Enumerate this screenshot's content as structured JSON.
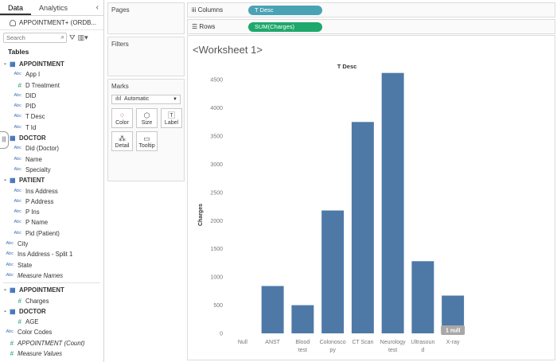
{
  "left_pane": {
    "tabs": [
      "Data",
      "Analytics"
    ],
    "collapse_glyph": "‹",
    "datasource": "APPOINTMENT+ (ORDB...",
    "search_placeholder": "Search",
    "tables_label": "Tables",
    "fields": [
      {
        "kind": "table",
        "label": "APPOINTMENT"
      },
      {
        "kind": "field",
        "type": "Abc",
        "label": "App I"
      },
      {
        "kind": "field",
        "type": "#",
        "label": "D Treatment"
      },
      {
        "kind": "field",
        "type": "Abc",
        "label": "DID"
      },
      {
        "kind": "field",
        "type": "Abc",
        "label": "PID"
      },
      {
        "kind": "field",
        "type": "Abc",
        "label": "T Desc"
      },
      {
        "kind": "field",
        "type": "Abc",
        "label": "T Id"
      },
      {
        "kind": "table",
        "label": "DOCTOR"
      },
      {
        "kind": "field",
        "type": "Abc",
        "label": "Did (Doctor)"
      },
      {
        "kind": "field",
        "type": "Abc",
        "label": "Name"
      },
      {
        "kind": "field",
        "type": "Abc",
        "label": "Specialty"
      },
      {
        "kind": "table",
        "label": "PATIENT"
      },
      {
        "kind": "field",
        "type": "Abc",
        "label": "Ins Address"
      },
      {
        "kind": "field",
        "type": "Abc",
        "label": "P Address"
      },
      {
        "kind": "field",
        "type": "Abc",
        "label": "P Ins"
      },
      {
        "kind": "field",
        "type": "Abc",
        "label": "P Name"
      },
      {
        "kind": "field",
        "type": "Abc",
        "label": "Pid (Patient)"
      },
      {
        "kind": "loose",
        "type": "Abc",
        "label": "City"
      },
      {
        "kind": "loose",
        "type": "Abc",
        "label": "Ins Address - Split 1"
      },
      {
        "kind": "loose",
        "type": "Abc",
        "label": "State"
      },
      {
        "kind": "loose-italic",
        "type": "Abc",
        "label": "Measure Names"
      },
      {
        "kind": "divider"
      },
      {
        "kind": "table",
        "label": "APPOINTMENT"
      },
      {
        "kind": "field",
        "type": "#",
        "label": "Charges"
      },
      {
        "kind": "table",
        "label": "DOCTOR"
      },
      {
        "kind": "field",
        "type": "#",
        "label": "AGE"
      },
      {
        "kind": "loose",
        "type": "Abc",
        "label": "Color Codes"
      },
      {
        "kind": "loose-italic",
        "type": "#",
        "label": "APPOINTMENT (Count)"
      },
      {
        "kind": "loose-italic",
        "type": "#",
        "label": "Measure Values"
      }
    ]
  },
  "cards": {
    "pages_title": "Pages",
    "filters_title": "Filters",
    "marks_title": "Marks",
    "marks_type": "Automatic",
    "mark_buttons": [
      {
        "label": "Color",
        "icon": "color-dots-icon",
        "glyph": "⁘"
      },
      {
        "label": "Size",
        "icon": "size-icon",
        "glyph": "⬡"
      },
      {
        "label": "Label",
        "icon": "label-icon",
        "glyph": "🅃"
      },
      {
        "label": "Detail",
        "icon": "detail-icon",
        "glyph": "⁂"
      },
      {
        "label": "Tooltip",
        "icon": "tooltip-icon",
        "glyph": "▭"
      }
    ]
  },
  "shelves": {
    "columns_label": "Columns",
    "columns_pill": "T Desc",
    "rows_label": "Rows",
    "rows_pill": "SUM(Charges)"
  },
  "worksheet": {
    "title": "<Worksheet 1>"
  },
  "colors": {
    "bar": "#4e79a7",
    "dim_pill": "#4aa3b5",
    "measure_pill": "#1ea86b",
    "null_badge": "#a8a8a8"
  },
  "chart_data": {
    "type": "bar",
    "title": "T Desc",
    "xlabel": "",
    "ylabel": "Charges",
    "ylim": [
      0,
      4700
    ],
    "yticks": [
      0,
      500,
      1000,
      1500,
      2000,
      2500,
      3000,
      3500,
      4000,
      4500
    ],
    "categories": [
      [
        "Null"
      ],
      [
        "ANST"
      ],
      [
        "Blood",
        "test"
      ],
      [
        "Colonosco",
        "py"
      ],
      [
        "CT Scan"
      ],
      [
        "Neurology",
        "test"
      ],
      [
        "Ultrasoun",
        "d"
      ],
      [
        "X-ray"
      ]
    ],
    "values": [
      0,
      840,
      500,
      2180,
      3750,
      4620,
      1280,
      670
    ],
    "null_badge": "1 null",
    "grid": false
  }
}
